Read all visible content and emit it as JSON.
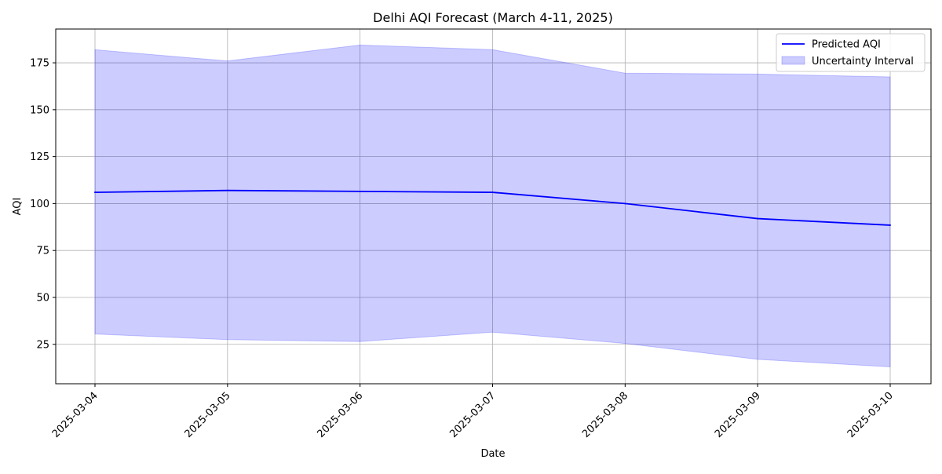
{
  "chart_data": {
    "type": "line",
    "title": "Delhi AQI Forecast (March 4-11, 2025)",
    "xlabel": "Date",
    "ylabel": "AQI",
    "categories": [
      "2025-03-04",
      "2025-03-05",
      "2025-03-06",
      "2025-03-07",
      "2025-03-08",
      "2025-03-09",
      "2025-03-10"
    ],
    "ylim": [
      4,
      193
    ],
    "yticks": [
      25,
      50,
      75,
      100,
      125,
      150,
      175
    ],
    "grid": true,
    "legend_position": "top-right",
    "series": [
      {
        "name": "Predicted AQI",
        "type": "line",
        "color": "#0000ff",
        "values": [
          106,
          107,
          106.5,
          106,
          100,
          92,
          88.5
        ]
      }
    ],
    "bands": [
      {
        "name": "Uncertainty Interval",
        "type": "area",
        "color": "#0000ff",
        "opacity": 0.2,
        "lower": [
          30.5,
          27.5,
          26.5,
          31.5,
          25.5,
          17,
          13
        ],
        "upper": [
          182,
          176,
          184.5,
          182,
          169.5,
          169,
          167.5
        ]
      }
    ]
  }
}
